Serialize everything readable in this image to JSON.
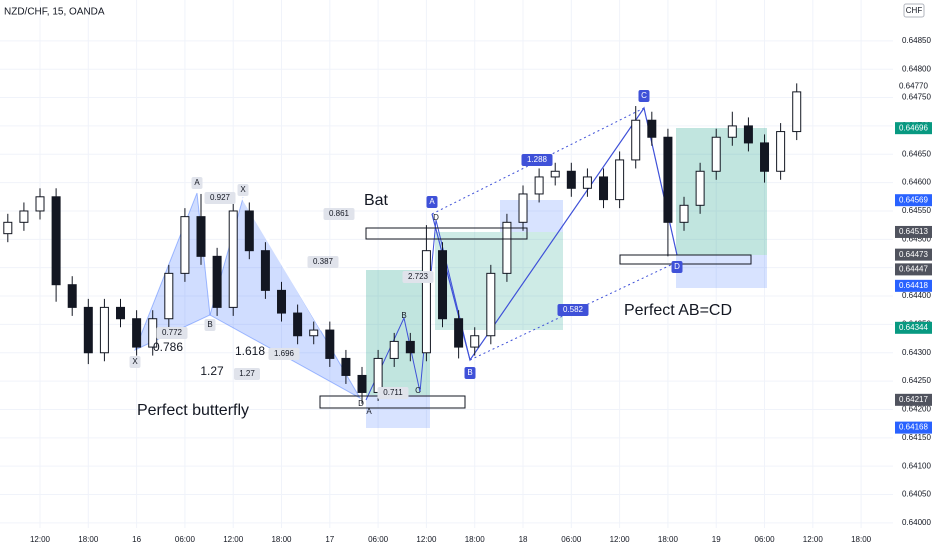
{
  "chart_data": {
    "type": "candlestick",
    "title": "NZD/CHF, 15, OANDA",
    "currency": "CHF",
    "candles": {
      "x": [
        -4,
        -2,
        0,
        2,
        4,
        6,
        8,
        10,
        12,
        14,
        16,
        18,
        20,
        22,
        24,
        26,
        28,
        30,
        32,
        34,
        36,
        38,
        40,
        42,
        44,
        46,
        48,
        50,
        52,
        54,
        56,
        58,
        60,
        62,
        64,
        66,
        68,
        70,
        72,
        74,
        76,
        78,
        80,
        82,
        84,
        86,
        88,
        90,
        92,
        94
      ],
      "open": [
        0.6451,
        0.6453,
        0.6455,
        0.64575,
        0.6442,
        0.6438,
        0.643,
        0.6438,
        0.6436,
        0.6431,
        0.6436,
        0.6444,
        0.6454,
        0.6447,
        0.6438,
        0.6455,
        0.6448,
        0.6441,
        0.6437,
        0.6433,
        0.6434,
        0.6429,
        0.6426,
        0.6423,
        0.6429,
        0.6432,
        0.643,
        0.6448,
        0.6436,
        0.6431,
        0.6433,
        0.6444,
        0.6453,
        0.6458,
        0.6461,
        0.6462,
        0.6459,
        0.6461,
        0.6457,
        0.6464,
        0.6471,
        0.6468,
        0.6453,
        0.6456,
        0.6462,
        0.6468,
        0.647,
        0.6467,
        0.6462,
        0.6469
      ],
      "high": [
        0.64545,
        0.64565,
        0.6459,
        0.6459,
        0.64435,
        0.64395,
        0.64395,
        0.64395,
        0.64375,
        0.64375,
        0.64455,
        0.64555,
        0.6458,
        0.64485,
        0.64575,
        0.64565,
        0.64495,
        0.64425,
        0.64385,
        0.64355,
        0.64355,
        0.64305,
        0.64275,
        0.64305,
        0.64335,
        0.64335,
        0.64525,
        0.64495,
        0.64375,
        0.64345,
        0.64455,
        0.64545,
        0.64595,
        0.64625,
        0.64635,
        0.64635,
        0.64625,
        0.64625,
        0.64655,
        0.64735,
        0.64725,
        0.64695,
        0.64575,
        0.64635,
        0.64695,
        0.64725,
        0.64715,
        0.64685,
        0.64705,
        0.64775
      ],
      "low": [
        0.64495,
        0.64515,
        0.64535,
        0.6439,
        0.64365,
        0.6428,
        0.64285,
        0.64345,
        0.64295,
        0.64295,
        0.64345,
        0.64425,
        0.64455,
        0.64365,
        0.64365,
        0.64465,
        0.64395,
        0.64355,
        0.64315,
        0.64315,
        0.64275,
        0.64245,
        0.6421,
        0.64215,
        0.64275,
        0.64285,
        0.64285,
        0.64345,
        0.6429,
        0.64295,
        0.64315,
        0.64425,
        0.64515,
        0.64565,
        0.64595,
        0.64575,
        0.64575,
        0.64555,
        0.64555,
        0.64625,
        0.64665,
        0.6447,
        0.64515,
        0.64545,
        0.64605,
        0.64665,
        0.64655,
        0.646,
        0.64605,
        0.64675
      ],
      "close": [
        0.6453,
        0.6455,
        0.64575,
        0.6442,
        0.6438,
        0.643,
        0.6438,
        0.6436,
        0.6431,
        0.6436,
        0.6444,
        0.6454,
        0.6447,
        0.6438,
        0.6455,
        0.6448,
        0.6441,
        0.6437,
        0.6433,
        0.6434,
        0.6429,
        0.6426,
        0.6423,
        0.6429,
        0.6432,
        0.643,
        0.6448,
        0.6436,
        0.6431,
        0.6433,
        0.6444,
        0.6453,
        0.6458,
        0.6461,
        0.6462,
        0.6459,
        0.6461,
        0.6457,
        0.6464,
        0.6471,
        0.6468,
        0.6453,
        0.6456,
        0.6462,
        0.6468,
        0.647,
        0.6467,
        0.6462,
        0.6469,
        0.6476
      ]
    },
    "up_color": "#ffffff",
    "down_color": "#131722",
    "xlim": [
      -4.97,
      105.96
    ],
    "ylim": [
      0.63991,
      0.64922
    ],
    "grid": true,
    "xticks": [
      {
        "value": 0,
        "label": "12:00"
      },
      {
        "value": 6,
        "label": "18:00"
      },
      {
        "value": 12,
        "label": "16"
      },
      {
        "value": 18,
        "label": "06:00"
      },
      {
        "value": 24,
        "label": "12:00"
      },
      {
        "value": 30,
        "label": "18:00"
      },
      {
        "value": 36,
        "label": "17"
      },
      {
        "value": 42,
        "label": "06:00"
      },
      {
        "value": 48,
        "label": "12:00"
      },
      {
        "value": 54,
        "label": "18:00"
      },
      {
        "value": 60,
        "label": "18"
      },
      {
        "value": 66,
        "label": "06:00"
      },
      {
        "value": 72,
        "label": "12:00"
      },
      {
        "value": 78,
        "label": "18:00"
      },
      {
        "value": 84,
        "label": "19"
      },
      {
        "value": 90,
        "label": "06:00"
      },
      {
        "value": 96,
        "label": "12:00"
      },
      {
        "value": 102,
        "label": "18:00"
      }
    ],
    "yticks": [
      {
        "value": 0.64,
        "label": "0.64000"
      },
      {
        "value": 0.6405,
        "label": "0.64050"
      },
      {
        "value": 0.641,
        "label": "0.64100"
      },
      {
        "value": 0.6415,
        "label": "0.64150"
      },
      {
        "value": 0.642,
        "label": "0.64200"
      },
      {
        "value": 0.6425,
        "label": "0.64250"
      },
      {
        "value": 0.643,
        "label": "0.64300"
      },
      {
        "value": 0.6435,
        "label": "0.64350"
      },
      {
        "value": 0.644,
        "label": "0.64400"
      },
      {
        "value": 0.6445,
        "label": "0.64450"
      },
      {
        "value": 0.645,
        "label": "0.64500"
      },
      {
        "value": 0.6455,
        "label": "0.64550"
      },
      {
        "value": 0.646,
        "label": "0.64600"
      },
      {
        "value": 0.6465,
        "label": "0.64650"
      },
      {
        "value": 0.647,
        "label": "0.64700"
      },
      {
        "value": 0.6475,
        "label": "0.64750"
      },
      {
        "value": 0.648,
        "label": "0.64800"
      },
      {
        "value": 0.6485,
        "label": "0.64850"
      }
    ],
    "price_labels": [
      {
        "value": 0.6477,
        "label": "0.64770",
        "color": "#ffffff",
        "text_color": "#131722"
      },
      {
        "value": 0.64696,
        "label": "0.64696",
        "color": "#089981",
        "text_color": "#ffffff"
      },
      {
        "value": 0.64569,
        "label": "0.64569",
        "color": "#2962ff",
        "text_color": "#ffffff"
      },
      {
        "value": 0.64513,
        "label": "0.64513",
        "color": "#50535e",
        "text_color": "#ffffff"
      },
      {
        "value": 0.64473,
        "label": "0.64473",
        "color": "#50535e",
        "text_color": "#ffffff"
      },
      {
        "value": 0.64447,
        "label": "0.64447",
        "color": "#50535e",
        "text_color": "#ffffff"
      },
      {
        "value": 0.64418,
        "label": "0.64418",
        "color": "#2962ff",
        "text_color": "#ffffff"
      },
      {
        "value": 0.64344,
        "label": "0.64344",
        "color": "#089981",
        "text_color": "#ffffff"
      },
      {
        "value": 0.64217,
        "label": "0.64217",
        "color": "#50535e",
        "text_color": "#ffffff"
      },
      {
        "value": 0.64168,
        "label": "0.64168",
        "color": "#2962ff",
        "text_color": "#ffffff"
      }
    ],
    "annotations": [
      "X",
      "A",
      "B",
      "0.927",
      "X",
      "0.772",
      "0.786",
      "1.618",
      "1.27",
      "1.27",
      "1.696",
      "0.387",
      "0.861",
      "Bat",
      "Perfect butterfly",
      "A",
      "D",
      "2.723",
      "B",
      "0.711",
      "C",
      "D",
      "A",
      "B",
      "1.288",
      "0.582",
      "C",
      "D",
      "Perfect AB=CD"
    ]
  }
}
